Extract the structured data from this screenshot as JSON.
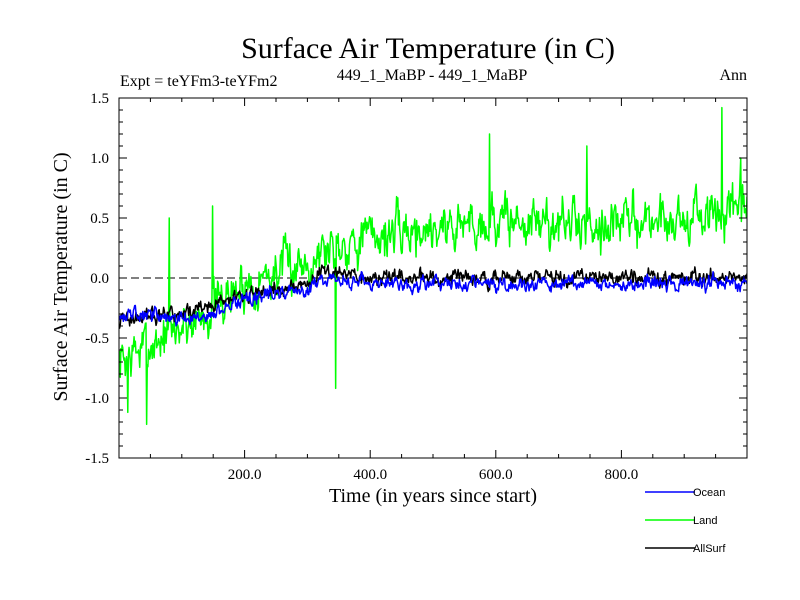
{
  "chart_data": {
    "type": "line",
    "title": "Surface Air Temperature (in C)",
    "subtitle_left": "Expt = teYFm3-teYFm2",
    "subtitle_center": "449_1_MaBP - 449_1_MaBP",
    "subtitle_right": "Ann",
    "xlabel": "Time (in years since start)",
    "ylabel": "Surface Air Temperature (in C)",
    "xlim": [
      0,
      1000
    ],
    "ylim": [
      -1.5,
      1.5
    ],
    "xticks": [
      200,
      400,
      600,
      800
    ],
    "xtick_labels": [
      "200.0",
      "400.0",
      "600.0",
      "800.0"
    ],
    "yticks": [
      -1.5,
      -1.0,
      -0.5,
      0.0,
      0.5,
      1.0,
      1.5
    ],
    "ytick_labels": [
      "-1.5",
      "-1.0",
      "-0.5",
      "0.0",
      "0.5",
      "1.0",
      "1.5"
    ],
    "zero_line": 0.0,
    "x_step": 1,
    "series": [
      {
        "name": "Land",
        "color": "#00ff00",
        "trend_x": [
          0,
          50,
          100,
          150,
          200,
          250,
          300,
          350,
          400,
          500,
          600,
          700,
          800,
          900,
          1000
        ],
        "trend_y": [
          -0.7,
          -0.55,
          -0.4,
          -0.25,
          -0.05,
          0.05,
          0.15,
          0.3,
          0.35,
          0.42,
          0.48,
          0.45,
          0.47,
          0.5,
          0.55
        ],
        "noise_amp": 0.28,
        "extremes": [
          [
            14,
            -1.12
          ],
          [
            44,
            -1.22
          ],
          [
            80,
            0.5
          ],
          [
            149,
            0.6
          ],
          [
            345,
            -0.92
          ],
          [
            590,
            1.2
          ],
          [
            745,
            1.1
          ],
          [
            960,
            1.42
          ],
          [
            990,
            1.0
          ]
        ]
      },
      {
        "name": "AllSurf",
        "color": "#000000",
        "trend_x": [
          0,
          100,
          200,
          300,
          320,
          400,
          600,
          800,
          1000
        ],
        "trend_y": [
          -0.35,
          -0.3,
          -0.15,
          -0.05,
          0.05,
          0.0,
          0.0,
          0.0,
          0.02
        ],
        "noise_amp": 0.09
      },
      {
        "name": "Ocean",
        "color": "#0000ff",
        "trend_x": [
          0,
          50,
          100,
          150,
          200,
          250,
          300,
          320,
          400,
          600,
          800,
          1000
        ],
        "trend_y": [
          -0.32,
          -0.3,
          -0.35,
          -0.3,
          -0.18,
          -0.12,
          -0.1,
          0.0,
          -0.05,
          -0.05,
          -0.05,
          -0.05
        ],
        "noise_amp": 0.08
      }
    ],
    "legend": [
      {
        "name": "Ocean",
        "color": "#0000ff"
      },
      {
        "name": "Land",
        "color": "#00ff00"
      },
      {
        "name": "AllSurf",
        "color": "#000000"
      }
    ],
    "legend_position": "bottom-right"
  }
}
